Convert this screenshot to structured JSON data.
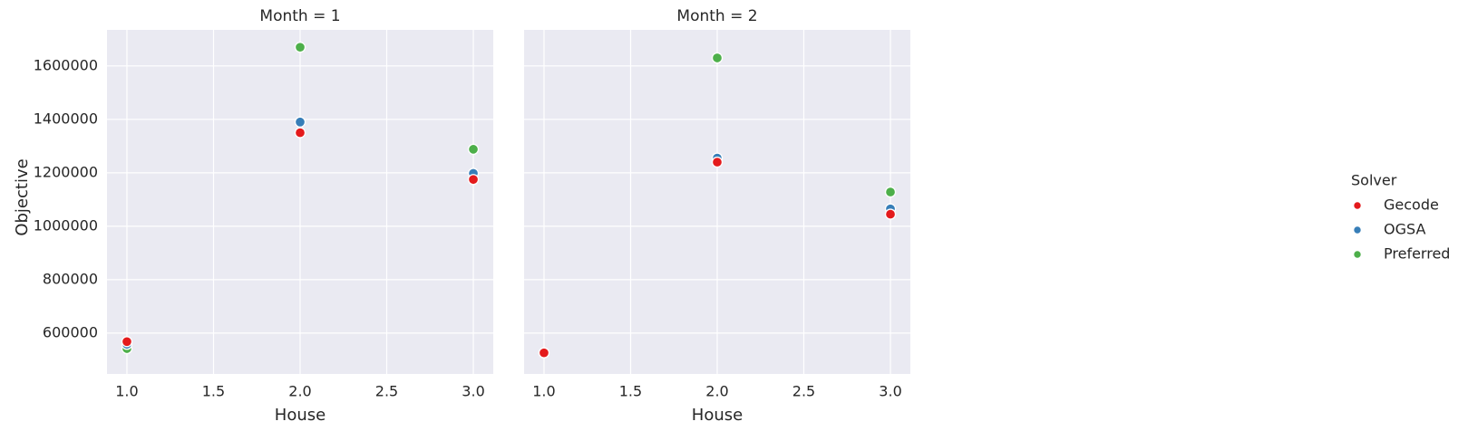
{
  "chart_data": {
    "type": "scatter",
    "facet_variable": "Month",
    "y_label": "Objective",
    "x_label": "House",
    "x_ticks": [
      "1.0",
      "1.5",
      "2.0",
      "2.5",
      "3.0"
    ],
    "y_ticks": [
      "600000",
      "800000",
      "1000000",
      "1200000",
      "1400000",
      "1600000"
    ],
    "xlim": [
      0.885,
      3.115
    ],
    "ylim": [
      447000,
      1735000
    ],
    "grid": true,
    "background": "#eaeaf2",
    "legend": {
      "title": "Solver",
      "placement": "right",
      "entries": [
        {
          "name": "Gecode",
          "color": "#e41a1c"
        },
        {
          "name": "OGSA",
          "color": "#377eb8"
        },
        {
          "name": "Preferred",
          "color": "#4daf4a"
        }
      ]
    },
    "facets": [
      {
        "title": "Month = 1",
        "series": [
          {
            "name": "Preferred",
            "color": "#4daf4a",
            "points": [
              [
                1.0,
                542000
              ],
              [
                2.0,
                1670000
              ],
              [
                3.0,
                1288000
              ]
            ]
          },
          {
            "name": "OGSA",
            "color": "#377eb8",
            "points": [
              [
                1.0,
                558000
              ],
              [
                2.0,
                1390000
              ],
              [
                3.0,
                1198000
              ]
            ]
          },
          {
            "name": "Gecode",
            "color": "#e41a1c",
            "points": [
              [
                1.0,
                568000
              ],
              [
                2.0,
                1350000
              ],
              [
                3.0,
                1175000
              ]
            ]
          }
        ]
      },
      {
        "title": "Month = 2",
        "series": [
          {
            "name": "Preferred",
            "color": "#4daf4a",
            "points": [
              [
                1.0,
                526000
              ],
              [
                2.0,
                1630000
              ],
              [
                3.0,
                1128000
              ]
            ]
          },
          {
            "name": "OGSA",
            "color": "#377eb8",
            "points": [
              [
                1.0,
                526000
              ],
              [
                2.0,
                1255000
              ],
              [
                3.0,
                1065000
              ]
            ]
          },
          {
            "name": "Gecode",
            "color": "#e41a1c",
            "points": [
              [
                1.0,
                526000
              ],
              [
                2.0,
                1240000
              ],
              [
                3.0,
                1045000
              ]
            ]
          }
        ]
      }
    ]
  }
}
